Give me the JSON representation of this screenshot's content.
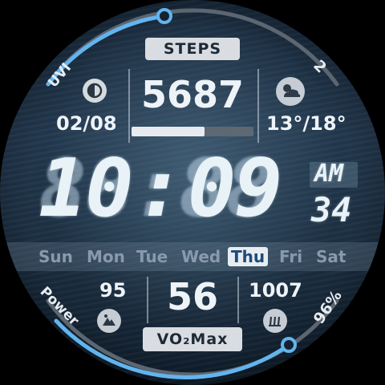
{
  "steps": {
    "label": "STEPS",
    "value": "5687",
    "progress": 0.6
  },
  "date": "02/08",
  "weather": {
    "temp_range": "13°/18°",
    "icon": "cloud-sun-icon"
  },
  "moon_icon": "moon-phase-icon",
  "arc_top": {
    "left_label": "UVI",
    "right_label": "2"
  },
  "time": {
    "hours": "10",
    "separator": ":",
    "minutes": "09",
    "ampm": "AM",
    "seconds": "34",
    "ghost_digits": "88:88"
  },
  "days": [
    {
      "label": "Sun",
      "active": false
    },
    {
      "label": "Mon",
      "active": false
    },
    {
      "label": "Tue",
      "active": false
    },
    {
      "label": "Wed",
      "active": false
    },
    {
      "label": "Thu",
      "active": true
    },
    {
      "label": "Fri",
      "active": false
    },
    {
      "label": "Sat",
      "active": false
    }
  ],
  "bottom": {
    "left_value": "95",
    "left_icon": "mountain-icon",
    "center_value": "56",
    "center_label": "VO₂Max",
    "right_value": "1007",
    "right_icon": "pressure-icon"
  },
  "arc_bottom": {
    "left_label": "Power",
    "right_label": "96%",
    "level": 0.96
  },
  "colors": {
    "accent": "#62b4ee",
    "track": "#5c6670",
    "text": "#eef3f7",
    "active_day": "#1d4a7a"
  }
}
